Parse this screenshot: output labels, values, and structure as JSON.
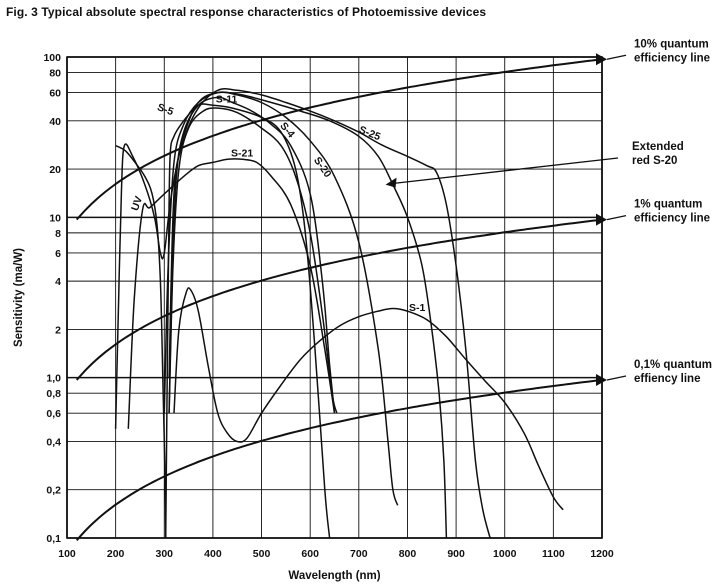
{
  "figure": {
    "title": "Fig. 3  Typical absolute spectral response characteristics of Photoemissive devices"
  },
  "chart_data": {
    "type": "line",
    "title": "Fig. 3  Typical absolute spectral response characteristics of Photoemissive devices",
    "xlabel": "Wavelength (nm)",
    "ylabel": "Sensitivity (ma/W)",
    "xlim": [
      100,
      1200
    ],
    "ylim": [
      0.1,
      100
    ],
    "yscale": "log",
    "grid": true,
    "x_ticks": [
      100,
      200,
      300,
      400,
      500,
      600,
      700,
      800,
      900,
      1000,
      1100,
      1200
    ],
    "x_tick_labels": [
      "100",
      "200",
      "300",
      "400",
      "500",
      "600",
      "700",
      "800",
      "900",
      "1000",
      "1100",
      "1200"
    ],
    "y_ticks": [
      0.1,
      0.2,
      0.4,
      0.6,
      0.8,
      1,
      2,
      4,
      6,
      8,
      10,
      20,
      40,
      60,
      80,
      100
    ],
    "y_tick_labels": [
      "0,1",
      "0,2",
      "0,4",
      "0,6",
      "0,8",
      "1,0",
      "2",
      "4",
      "6",
      "8",
      "10",
      "20",
      "40",
      "60",
      "80",
      "100"
    ],
    "series": [
      {
        "name": "S-5",
        "label_at": [
          300,
          45
        ],
        "points": [
          [
            303,
            0.1
          ],
          [
            306,
            1.0
          ],
          [
            309,
            7
          ],
          [
            312,
            24
          ],
          [
            320,
            32
          ],
          [
            340,
            40
          ],
          [
            370,
            50
          ],
          [
            400,
            50
          ],
          [
            440,
            48
          ],
          [
            500,
            42
          ],
          [
            540,
            34
          ],
          [
            570,
            20
          ],
          [
            590,
            8
          ],
          [
            610,
            1.5
          ],
          [
            630,
            0.2
          ],
          [
            640,
            0.1
          ]
        ]
      },
      {
        "name": "S-11",
        "label_at": [
          428,
          52
        ],
        "points": [
          [
            310,
            0.6
          ],
          [
            316,
            4
          ],
          [
            325,
            18
          ],
          [
            340,
            34
          ],
          [
            370,
            50
          ],
          [
            410,
            56
          ],
          [
            440,
            52
          ],
          [
            480,
            46
          ],
          [
            520,
            38
          ],
          [
            560,
            28
          ],
          [
            600,
            14
          ],
          [
            625,
            4
          ],
          [
            640,
            1.2
          ],
          [
            650,
            0.6
          ]
        ]
      },
      {
        "name": "S-4",
        "label_at": [
          548,
          34
        ],
        "points": [
          [
            310,
            0.6
          ],
          [
            318,
            5
          ],
          [
            330,
            20
          ],
          [
            350,
            36
          ],
          [
            380,
            46
          ],
          [
            410,
            48
          ],
          [
            450,
            45
          ],
          [
            500,
            36
          ],
          [
            540,
            28
          ],
          [
            570,
            18
          ],
          [
            600,
            8
          ],
          [
            625,
            2.5
          ],
          [
            645,
            0.8
          ],
          [
            655,
            0.6
          ]
        ]
      },
      {
        "name": "S-21",
        "label_at": [
          460,
          24
        ],
        "points": [
          [
            226,
            0.48
          ],
          [
            238,
            3
          ],
          [
            255,
            11
          ],
          [
            270,
            11.5
          ],
          [
            300,
            14
          ],
          [
            340,
            18
          ],
          [
            370,
            21
          ],
          [
            400,
            22
          ],
          [
            430,
            23
          ],
          [
            460,
            23
          ],
          [
            490,
            22
          ],
          [
            520,
            18
          ],
          [
            560,
            12
          ],
          [
            600,
            5
          ],
          [
            630,
            1.5
          ],
          [
            650,
            0.6
          ]
        ]
      },
      {
        "name": "S-20",
        "label_at": [
          620,
          20
        ],
        "points": [
          [
            300,
            0.6
          ],
          [
            308,
            5
          ],
          [
            320,
            22
          ],
          [
            340,
            38
          ],
          [
            370,
            52
          ],
          [
            410,
            60
          ],
          [
            450,
            58
          ],
          [
            500,
            52
          ],
          [
            550,
            42
          ],
          [
            600,
            30
          ],
          [
            650,
            18
          ],
          [
            700,
            7
          ],
          [
            740,
            1.5
          ],
          [
            760,
            0.4
          ],
          [
            770,
            0.2
          ],
          [
            780,
            0.16
          ]
        ]
      },
      {
        "name": "S-25",
        "label_at": [
          720,
          32
        ],
        "points": [
          [
            310,
            1.0
          ],
          [
            320,
            14
          ],
          [
            340,
            30
          ],
          [
            370,
            48
          ],
          [
            410,
            62
          ],
          [
            450,
            62
          ],
          [
            500,
            58
          ],
          [
            550,
            52
          ],
          [
            600,
            46
          ],
          [
            650,
            40
          ],
          [
            700,
            34
          ],
          [
            750,
            28
          ],
          [
            800,
            24
          ],
          [
            840,
            21
          ],
          [
            860,
            19
          ],
          [
            880,
            12
          ],
          [
            900,
            5
          ],
          [
            920,
            1.5
          ],
          [
            940,
            0.3
          ],
          [
            955,
            0.15
          ],
          [
            970,
            0.1
          ]
        ]
      },
      {
        "name": "UV",
        "label_at": [
          250,
          12
        ],
        "points": [
          [
            200,
            28
          ],
          [
            220,
            26
          ],
          [
            240,
            22
          ],
          [
            260,
            18
          ],
          [
            275,
            14
          ],
          [
            285,
            9
          ],
          [
            292,
            4
          ],
          [
            297,
            1
          ],
          [
            300,
            0.4
          ],
          [
            302,
            0.2
          ],
          [
            303,
            0.1
          ]
        ]
      },
      {
        "name": "Extended red S-20",
        "points": [
          [
            200,
            0.48
          ],
          [
            206,
            3
          ],
          [
            212,
            15
          ],
          [
            218,
            28
          ],
          [
            235,
            24
          ],
          [
            260,
            16
          ],
          [
            280,
            10
          ],
          [
            292,
            6
          ],
          [
            300,
            6
          ],
          [
            315,
            14
          ],
          [
            340,
            32
          ],
          [
            370,
            52
          ],
          [
            410,
            60
          ],
          [
            460,
            58
          ],
          [
            520,
            52
          ],
          [
            580,
            46
          ],
          [
            640,
            40
          ],
          [
            700,
            32
          ],
          [
            740,
            24
          ],
          [
            770,
            16
          ],
          [
            800,
            10
          ],
          [
            830,
            5
          ],
          [
            850,
            2
          ],
          [
            865,
            0.8
          ],
          [
            875,
            0.3
          ],
          [
            880,
            0.1
          ]
        ]
      },
      {
        "name": "S-1",
        "label_at": [
          820,
          2.6
        ],
        "points": [
          [
            320,
            0.6
          ],
          [
            330,
            2.0
          ],
          [
            345,
            3.4
          ],
          [
            355,
            3.5
          ],
          [
            370,
            2.6
          ],
          [
            390,
            1.2
          ],
          [
            410,
            0.6
          ],
          [
            430,
            0.45
          ],
          [
            450,
            0.4
          ],
          [
            470,
            0.42
          ],
          [
            500,
            0.6
          ],
          [
            540,
            0.9
          ],
          [
            580,
            1.3
          ],
          [
            620,
            1.7
          ],
          [
            660,
            2.1
          ],
          [
            700,
            2.4
          ],
          [
            740,
            2.6
          ],
          [
            770,
            2.7
          ],
          [
            800,
            2.6
          ],
          [
            840,
            2.3
          ],
          [
            880,
            1.8
          ],
          [
            920,
            1.3
          ],
          [
            960,
            0.95
          ],
          [
            1000,
            0.7
          ],
          [
            1040,
            0.45
          ],
          [
            1070,
            0.28
          ],
          [
            1100,
            0.18
          ],
          [
            1120,
            0.15
          ]
        ]
      }
    ],
    "efficiency_lines": [
      {
        "name": "10% quantum efficiency line",
        "efficiency": 0.1,
        "callout": [
          "10% quantum",
          "efficiency line"
        ]
      },
      {
        "name": "1% quantum efficiency line",
        "efficiency": 0.01,
        "callout": [
          "1% quantum",
          "efficiency line"
        ]
      },
      {
        "name": "0,1% quantum effiency line",
        "efficiency": 0.001,
        "callout": [
          "0,1% quantum",
          "effiency line"
        ]
      }
    ],
    "extended_red_callout": [
      "Extended",
      "red S-20"
    ]
  }
}
